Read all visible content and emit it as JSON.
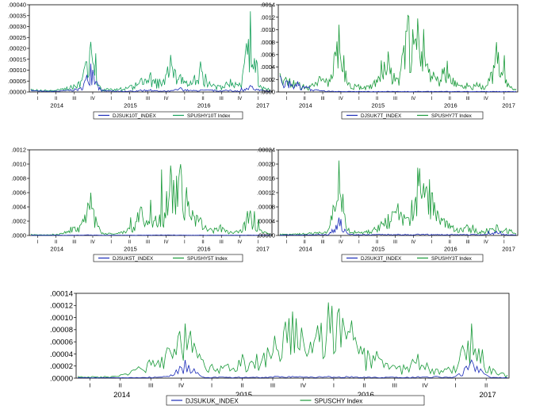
{
  "colors": {
    "index_series": "#1a2bb8",
    "bond_series": "#1a9a3a",
    "bond_series_alt": "#14a05a",
    "axis": "#000000"
  },
  "chart_data": [
    {
      "type": "line",
      "y_ticks": [
        ".00000",
        ".00005",
        ".00010",
        ".00015",
        ".00020",
        ".00025",
        ".00030",
        ".00035",
        ".00040"
      ],
      "ylim": [
        0,
        0.0004
      ],
      "quarter_labels": [
        "I",
        "II",
        "III",
        "IV",
        "I",
        "II",
        "III",
        "IV",
        "I",
        "II",
        "III",
        "IV",
        "I"
      ],
      "year_labels": [
        "2014",
        "2015",
        "2016",
        "2017"
      ],
      "legend_position": "bottom",
      "series": [
        {
          "name": "DJSUK10T_INDEX",
          "color_key": "index_series",
          "values": [
            1e-05,
            5e-06,
            4e-06,
            6e-06,
            1.2e-05,
            2e-05,
            0.00013,
            1e-05,
            6e-06,
            5e-06,
            4e-06,
            1e-05,
            1.2e-05,
            4e-06,
            6e-06,
            2e-05,
            8e-06,
            1e-05,
            1e-05,
            6e-06,
            1e-05,
            5e-06,
            3e-05,
            1e-05,
            4e-06
          ]
        },
        {
          "name": "SPUSHY10T Index",
          "color_key": "bond_series_alt",
          "values": [
            1.5e-05,
            1e-05,
            8e-06,
            1.5e-05,
            3e-05,
            5e-05,
            0.00023,
            2e-05,
            1.5e-05,
            2e-05,
            3e-05,
            6e-05,
            9e-05,
            4e-05,
            0.00017,
            8e-05,
            5e-05,
            0.00014,
            4e-05,
            3e-05,
            6e-05,
            3e-05,
            0.00037,
            3e-05,
            1e-05
          ]
        }
      ]
    },
    {
      "type": "line",
      "y_ticks": [
        ".0000",
        ".0002",
        ".0004",
        ".0006",
        ".0008",
        ".0010",
        ".0012",
        ".0014"
      ],
      "ylim": [
        0,
        0.0014
      ],
      "quarter_labels": [
        "I",
        "II",
        "III",
        "IV",
        "I",
        "II",
        "III",
        "IV",
        "I",
        "II",
        "III",
        "IV",
        "I"
      ],
      "year_labels": [
        "2014",
        "2015",
        "2016",
        "2017"
      ],
      "legend_position": "bottom",
      "series": [
        {
          "name": "DJSUK7T_INDEX",
          "color_key": "index_series",
          "values": [
            0.00026,
            0.00018,
            0.00012,
            8e-05,
            3e-05,
            1.5e-05,
            1e-05,
            1e-05,
            1e-05,
            1e-05,
            1e-05,
            1e-05,
            1e-05,
            1e-05,
            1e-05,
            1e-05,
            1e-05,
            1e-05,
            1e-05,
            1e-05,
            1e-05,
            1e-05,
            1e-05,
            1e-05,
            1e-05
          ]
        },
        {
          "name": "SPUSHY7T Index",
          "color_key": "bond_series",
          "values": [
            0.0003,
            0.00022,
            0.00015,
            0.0001,
            0.00025,
            0.0002,
            0.00108,
            0.00015,
            0.00012,
            0.0001,
            0.00025,
            0.00065,
            0.00022,
            0.00123,
            0.00118,
            0.00045,
            0.00025,
            0.0005,
            0.00015,
            0.0001,
            0.00015,
            0.0001,
            0.0008,
            0.0002,
            5e-05
          ]
        }
      ]
    },
    {
      "type": "line",
      "y_ticks": [
        ".0000",
        ".0002",
        ".0004",
        ".0006",
        ".0008",
        ".0010",
        ".0012"
      ],
      "ylim": [
        0,
        0.0012
      ],
      "quarter_labels": [
        "I",
        "II",
        "III",
        "IV",
        "I",
        "II",
        "III",
        "IV",
        "I",
        "II",
        "III",
        "IV",
        "I"
      ],
      "year_labels": [
        "2014",
        "2015",
        "2016",
        "2017"
      ],
      "legend_position": "bottom",
      "series": [
        {
          "name": "DJSUK5T_INDEX",
          "color_key": "index_series",
          "values": [
            5e-06,
            4e-06,
            4e-06,
            5e-06,
            5e-06,
            6e-06,
            1e-05,
            5e-06,
            5e-06,
            5e-06,
            5e-06,
            6e-06,
            6e-06,
            8e-06,
            8e-06,
            6e-06,
            5e-06,
            6e-06,
            5e-06,
            5e-06,
            5e-06,
            5e-06,
            6e-06,
            5e-06,
            5e-06
          ]
        },
        {
          "name": "SPUSHY5T Index",
          "color_key": "bond_series",
          "values": [
            2e-05,
            1e-05,
            1e-05,
            3e-05,
            0.00012,
            0.00015,
            0.0006,
            5e-05,
            3e-05,
            5e-05,
            0.00012,
            0.0004,
            0.0005,
            0.00012,
            0.00098,
            0.001,
            0.0004,
            0.00025,
            0.0001,
            0.00015,
            5e-05,
            8e-05,
            0.00035,
            8e-05,
            2e-05
          ]
        }
      ]
    },
    {
      "type": "line",
      "y_ticks": [
        ".00000",
        ".00004",
        ".00008",
        ".00012",
        ".00016",
        ".00020",
        ".00024"
      ],
      "ylim": [
        0,
        0.00024
      ],
      "quarter_labels": [
        "I",
        "II",
        "III",
        "IV",
        "I",
        "II",
        "III",
        "IV",
        "I",
        "II",
        "III",
        "IV",
        "I"
      ],
      "year_labels": [
        "2014",
        "2015",
        "2016",
        "2017"
      ],
      "legend_position": "bottom",
      "series": [
        {
          "name": "DJSUK3T_INDEX",
          "color_key": "index_series",
          "values": [
            2e-06,
            2e-06,
            2e-06,
            2e-06,
            3e-06,
            4e-06,
            5e-05,
            4e-06,
            3e-06,
            3e-06,
            3e-06,
            4e-06,
            4e-06,
            3e-06,
            4e-06,
            4e-06,
            3e-06,
            3e-06,
            3e-06,
            3e-06,
            3e-06,
            3e-06,
            1.2e-05,
            3e-06,
            2e-06
          ]
        },
        {
          "name": "SPUSHY3T Index",
          "color_key": "bond_series",
          "values": [
            5e-06,
            4e-06,
            6e-06,
            8e-06,
            1e-05,
            2e-05,
            0.00021,
            2e-05,
            1e-05,
            1.5e-05,
            3e-05,
            6e-05,
            9e-05,
            5e-05,
            0.00019,
            0.00018,
            7e-05,
            4e-05,
            2e-05,
            3e-05,
            1e-05,
            2e-05,
            3e-05,
            2e-05,
            5e-06
          ]
        }
      ]
    },
    {
      "type": "line",
      "y_ticks": [
        ".00000",
        ".00002",
        ".00004",
        ".00006",
        ".00008",
        ".00010",
        ".00012",
        ".00014"
      ],
      "ylim": [
        0,
        0.00014
      ],
      "quarter_labels": [
        "I",
        "II",
        "III",
        "IV",
        "I",
        "II",
        "III",
        "IV",
        "I",
        "II",
        "III",
        "IV",
        "I",
        "II"
      ],
      "year_labels": [
        "2014",
        "2015",
        "2016",
        "2017"
      ],
      "legend_position": "bottom",
      "series": [
        {
          "name": "DJSUKUK_INDEX",
          "color_key": "index_series",
          "values": [
            1e-06,
            1e-06,
            1e-06,
            1e-06,
            2e-06,
            3e-06,
            3e-05,
            2e-06,
            2e-06,
            2e-06,
            2e-06,
            3e-06,
            3e-06,
            2e-06,
            3e-06,
            3e-06,
            2e-06,
            2e-06,
            2e-06,
            2e-06,
            3e-06,
            2e-06,
            3e-05,
            2e-06,
            1e-06
          ]
        },
        {
          "name": "SPUSCHY Index",
          "color_key": "bond_series",
          "values": [
            3e-06,
            2e-06,
            3e-06,
            1.2e-05,
            3e-05,
            5e-05,
            9e-05,
            3e-05,
            2e-05,
            3e-05,
            4e-05,
            7e-05,
            0.00011,
            6e-05,
            0.000125,
            0.00012,
            5e-05,
            3e-05,
            2e-05,
            4e-05,
            1.5e-05,
            2e-05,
            9e-05,
            2e-05,
            5e-06
          ]
        }
      ]
    }
  ]
}
